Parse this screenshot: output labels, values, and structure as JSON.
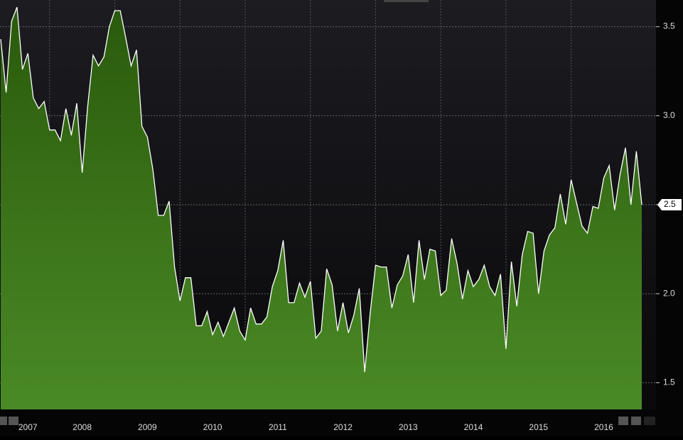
{
  "chart_data": {
    "type": "area",
    "categories": [
      null,
      null,
      null,
      null,
      null,
      "2007",
      null,
      null,
      null,
      null,
      null,
      null,
      null,
      null,
      null,
      "2008",
      null,
      null,
      null,
      null,
      null,
      null,
      null,
      null,
      null,
      null,
      null,
      "2009",
      null,
      null,
      null,
      null,
      null,
      null,
      null,
      null,
      null,
      null,
      null,
      "2010",
      null,
      null,
      null,
      null,
      null,
      null,
      null,
      null,
      null,
      null,
      null,
      "2011",
      null,
      null,
      null,
      null,
      null,
      null,
      null,
      null,
      null,
      null,
      null,
      "2012",
      null,
      null,
      null,
      null,
      null,
      null,
      null,
      null,
      null,
      null,
      null,
      "2013",
      null,
      null,
      null,
      null,
      null,
      null,
      null,
      null,
      null,
      null,
      null,
      "2014",
      null,
      null,
      null,
      null,
      null,
      null,
      null,
      null,
      null,
      null,
      null,
      "2015",
      null,
      null,
      null,
      null,
      null,
      null,
      null,
      null,
      null,
      null,
      null,
      "2016",
      null,
      null,
      null,
      null,
      null,
      null,
      null
    ],
    "values": [
      3.43,
      3.13,
      3.53,
      3.61,
      3.26,
      3.35,
      3.1,
      3.04,
      3.08,
      2.92,
      2.92,
      2.86,
      3.04,
      2.89,
      3.07,
      2.68,
      3.05,
      3.34,
      3.28,
      3.33,
      3.5,
      3.59,
      3.59,
      3.44,
      3.28,
      3.37,
      2.94,
      2.88,
      2.7,
      2.44,
      2.44,
      2.52,
      2.15,
      1.96,
      2.09,
      2.09,
      1.82,
      1.82,
      1.9,
      1.77,
      1.84,
      1.76,
      1.84,
      1.92,
      1.79,
      1.74,
      1.92,
      1.83,
      1.83,
      1.87,
      2.04,
      2.13,
      2.3,
      1.95,
      1.95,
      2.06,
      1.98,
      2.07,
      1.75,
      1.79,
      2.14,
      2.05,
      1.79,
      1.95,
      1.78,
      1.88,
      2.03,
      1.56,
      1.89,
      2.16,
      2.15,
      2.15,
      1.92,
      2.05,
      2.1,
      2.22,
      1.95,
      2.3,
      2.08,
      2.25,
      2.24,
      1.99,
      2.02,
      2.31,
      2.17,
      1.97,
      2.13,
      2.04,
      2.08,
      2.16,
      2.04,
      1.99,
      2.11,
      1.69,
      2.18,
      1.93,
      2.22,
      2.35,
      2.34,
      2.0,
      2.24,
      2.33,
      2.37,
      2.56,
      2.39,
      2.64,
      2.51,
      2.38,
      2.34,
      2.49,
      2.48,
      2.65,
      2.72,
      2.47,
      2.67,
      2.82,
      2.5,
      2.8,
      2.5
    ],
    "color": "#3d7a1c",
    "line_color": "#ffffff",
    "ylim": [
      1.35,
      3.65
    ],
    "yticks": [
      1.5,
      {
        "value": 2,
        "label": "2.0"
      },
      2.5,
      {
        "value": 3,
        "label": "3.0"
      },
      3.5
    ],
    "grid": true
  }
}
